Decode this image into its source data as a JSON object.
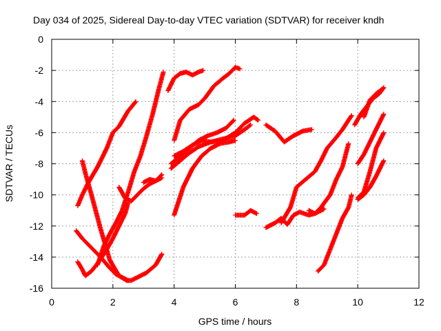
{
  "chart_data": {
    "type": "scatter",
    "title": "Day 034 of 2025, Sidereal Day-to-day VTEC variation (SDTVAR) for receiver kndh",
    "xlabel": "GPS time / hours",
    "ylabel": "SDTVAR / TECUs",
    "xlim": [
      0,
      12
    ],
    "ylim": [
      -16,
      0
    ],
    "xticks": [
      0,
      2,
      4,
      6,
      8,
      10,
      12
    ],
    "yticks": [
      0,
      -2,
      -4,
      -6,
      -8,
      -10,
      -12,
      -14,
      -16
    ],
    "grid": true,
    "marker": "plus",
    "color": "#ff0000",
    "series": [
      {
        "x": [
          0.85,
          1.0,
          1.2,
          1.5,
          1.8,
          2.0,
          2.2,
          2.5,
          2.75
        ],
        "y": [
          -10.7,
          -10.0,
          -9.2,
          -8.2,
          -7.0,
          -6.0,
          -5.6,
          -4.6,
          -4.0
        ]
      },
      {
        "x": [
          1.0,
          1.1,
          1.3,
          1.6,
          1.9,
          2.2,
          2.45,
          2.6,
          2.8,
          3.1,
          3.4,
          3.6
        ],
        "y": [
          -7.8,
          -8.6,
          -10.0,
          -12.2,
          -14.2,
          -15.2,
          -15.5,
          -15.5,
          -15.3,
          -15.0,
          -14.5,
          -13.8
        ]
      },
      {
        "x": [
          0.85,
          1.0,
          1.1,
          1.3,
          1.5,
          1.8,
          2.0,
          2.2,
          2.4,
          2.5
        ],
        "y": [
          -14.3,
          -14.8,
          -15.2,
          -14.9,
          -14.4,
          -13.5,
          -12.8,
          -12.0,
          -11.2,
          -10.5
        ]
      },
      {
        "x": [
          0.8,
          1.0,
          1.3,
          1.6,
          1.9,
          2.1,
          2.3,
          2.5
        ],
        "y": [
          -12.3,
          -12.8,
          -13.4,
          -14.0,
          -14.7,
          -15.1,
          -15.3,
          -15.5
        ]
      },
      {
        "x": [
          1.5,
          1.7,
          1.9,
          2.1,
          2.3,
          2.5,
          2.7,
          2.9,
          3.1,
          3.3,
          3.5,
          3.65
        ],
        "y": [
          -14.5,
          -13.3,
          -12.5,
          -11.8,
          -11.0,
          -9.8,
          -8.5,
          -7.5,
          -6.2,
          -4.8,
          -3.2,
          -2.1
        ]
      },
      {
        "x": [
          2.2,
          2.4,
          2.6,
          2.8,
          3.0,
          3.2,
          3.4,
          3.6
        ],
        "y": [
          -9.5,
          -10.2,
          -10.4,
          -10.0,
          -9.6,
          -9.3,
          -9.1,
          -8.9
        ]
      },
      {
        "x": [
          3.0,
          3.2,
          3.4,
          3.6
        ],
        "y": [
          -9.2,
          -9.0,
          -9.1,
          -8.7
        ]
      },
      {
        "x": [
          3.8,
          4.0,
          4.2,
          4.4,
          4.6,
          4.8,
          4.95
        ],
        "y": [
          -3.3,
          -2.5,
          -2.2,
          -2.1,
          -2.3,
          -2.1,
          -2.0
        ]
      },
      {
        "x": [
          4.0,
          4.2,
          4.5,
          4.8,
          5.0,
          5.3,
          5.6,
          5.8,
          6.0,
          6.15
        ],
        "y": [
          -6.5,
          -5.2,
          -4.5,
          -4.2,
          -3.8,
          -3.0,
          -2.5,
          -2.2,
          -1.8,
          -1.9
        ]
      },
      {
        "x": [
          4.0,
          4.3,
          4.6,
          4.9,
          5.2,
          5.5,
          5.8,
          6.0
        ],
        "y": [
          -11.3,
          -9.5,
          -8.3,
          -7.5,
          -7.0,
          -6.7,
          -6.6,
          -6.5
        ]
      },
      {
        "x": [
          3.9,
          4.2,
          4.5,
          4.8,
          5.1,
          5.4,
          5.7,
          5.95
        ],
        "y": [
          -8.0,
          -7.5,
          -7.0,
          -6.5,
          -6.2,
          -6.0,
          -5.7,
          -5.2
        ]
      },
      {
        "x": [
          3.9,
          4.2,
          4.5,
          4.8,
          5.2,
          5.6,
          6.0,
          6.3,
          6.6,
          6.75
        ],
        "y": [
          -8.3,
          -7.8,
          -7.3,
          -6.9,
          -6.6,
          -6.5,
          -6.0,
          -5.4,
          -5.0,
          -5.2
        ]
      },
      {
        "x": [
          4.0,
          4.3,
          4.6,
          4.9,
          5.2,
          5.6,
          6.0,
          6.3,
          6.5
        ],
        "y": [
          -7.5,
          -7.2,
          -6.8,
          -6.5,
          -6.6,
          -6.4,
          -6.2,
          -5.8,
          -5.5
        ]
      },
      {
        "x": [
          6.0,
          6.3,
          6.5,
          6.7
        ],
        "y": [
          -11.3,
          -11.3,
          -11.0,
          -11.2
        ]
      },
      {
        "x": [
          7.0,
          7.3,
          7.6,
          7.9,
          8.2,
          8.5
        ],
        "y": [
          -5.5,
          -5.9,
          -6.6,
          -6.2,
          -5.9,
          -5.8
        ]
      },
      {
        "x": [
          7.0,
          7.3,
          7.5,
          7.7,
          7.9,
          8.1,
          8.4,
          8.6,
          8.9
        ],
        "y": [
          -12.1,
          -11.8,
          -11.5,
          -11.9,
          -11.3,
          -11.1,
          -11.3,
          -11.2,
          -10.9
        ]
      },
      {
        "x": [
          7.5,
          7.8,
          8.0,
          8.3,
          8.6,
          8.8,
          9.0,
          9.3,
          9.5,
          9.8
        ],
        "y": [
          -11.8,
          -10.8,
          -9.5,
          -9.0,
          -8.5,
          -7.8,
          -7.0,
          -6.3,
          -5.8,
          -4.9
        ]
      },
      {
        "x": [
          8.4,
          8.6,
          8.8,
          9.1,
          9.3,
          9.5,
          9.7
        ],
        "y": [
          -11.0,
          -11.2,
          -10.8,
          -10.0,
          -9.0,
          -8.2,
          -6.7
        ]
      },
      {
        "x": [
          8.7,
          8.9,
          9.1,
          9.3,
          9.5,
          9.7,
          9.8
        ],
        "y": [
          -14.9,
          -14.5,
          -13.5,
          -12.5,
          -11.5,
          -10.8,
          -10.0
        ]
      },
      {
        "x": [
          9.9,
          10.1,
          10.3,
          10.5,
          10.7,
          10.85
        ],
        "y": [
          -5.5,
          -4.8,
          -4.3,
          -3.8,
          -3.5,
          -3.1
        ]
      },
      {
        "x": [
          10.0,
          10.2,
          10.4,
          10.6,
          10.85
        ],
        "y": [
          -8.0,
          -7.4,
          -6.6,
          -5.8,
          -4.8
        ]
      },
      {
        "x": [
          10.2,
          10.4,
          10.6,
          10.8
        ],
        "y": [
          -5.0,
          -3.9,
          -3.5,
          -3.2
        ]
      },
      {
        "x": [
          10.0,
          10.2,
          10.4,
          10.6,
          10.85
        ],
        "y": [
          -10.2,
          -9.8,
          -8.5,
          -7.0,
          -6.0
        ]
      },
      {
        "x": [
          10.0,
          10.2,
          10.4,
          10.6,
          10.85
        ],
        "y": [
          -10.3,
          -10.0,
          -9.5,
          -8.8,
          -7.8
        ]
      }
    ]
  }
}
